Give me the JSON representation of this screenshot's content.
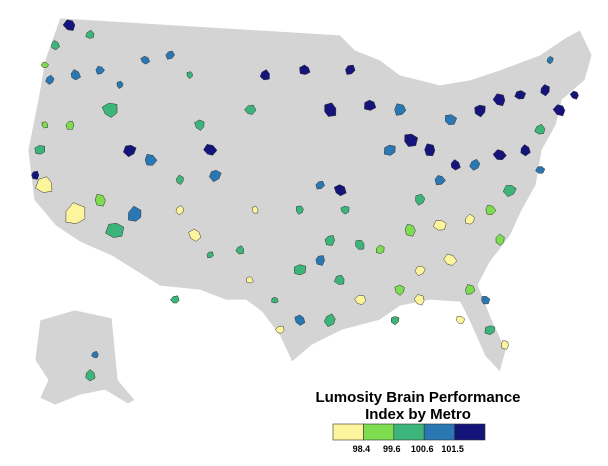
{
  "map": {
    "title_lines": [
      "Lumosity Brain Performance",
      "Index by Metro"
    ],
    "legend": {
      "colors": [
        "#fcf59b",
        "#7ddc4f",
        "#3db57a",
        "#2a78b3",
        "#14147a"
      ],
      "breaks": [
        98.4,
        99.6,
        100.6,
        101.5
      ]
    }
  }
}
